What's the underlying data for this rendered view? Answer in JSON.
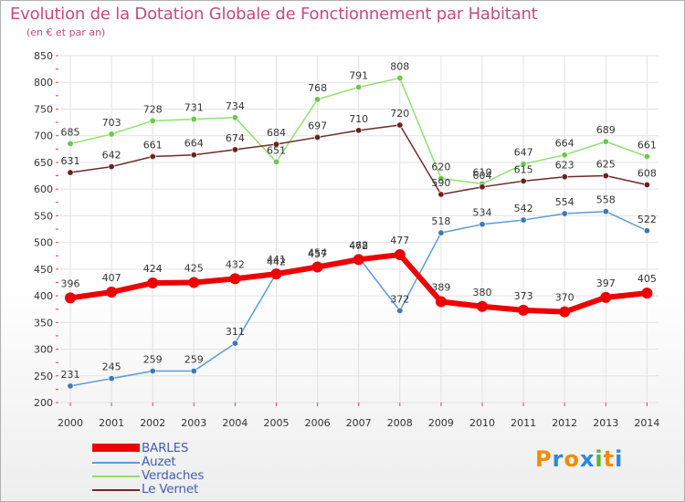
{
  "title": "Evolution de la Dotation Globale de Fonctionnement par Habitant",
  "subtitle": "(en € et par an)",
  "colors": {
    "title": "#c64a7a",
    "grid": "#e2e2e2",
    "axis_text": "#333333",
    "legend_text": "#3f5fb4"
  },
  "chart_data": {
    "type": "line",
    "title": "Evolution de la Dotation Globale de Fonctionnement par Habitant",
    "subtitle": "(en € et par an)",
    "xlabel": "",
    "ylabel": "",
    "ylim": [
      200,
      850
    ],
    "yticks": [
      200,
      250,
      300,
      350,
      400,
      450,
      500,
      550,
      600,
      650,
      700,
      750,
      800,
      850
    ],
    "grid": true,
    "legend_position": "bottom-left",
    "x": [
      "2000",
      "2001",
      "2002",
      "2003",
      "2004",
      "2005",
      "2006",
      "2007",
      "2008",
      "2009",
      "2010",
      "2011",
      "2012",
      "2013",
      "2014"
    ],
    "series": [
      {
        "name": "Auzet",
        "color": "#5b9bd5",
        "marker": "#3a7ab8",
        "width": 1.5,
        "values": [
          231,
          245,
          259,
          259,
          311,
          442,
          457,
          472,
          372,
          518,
          534,
          542,
          554,
          558,
          522
        ]
      },
      {
        "name": "Verdaches",
        "color": "#90e070",
        "marker": "#6cc84c",
        "width": 1.5,
        "values": [
          685,
          703,
          728,
          731,
          734,
          651,
          768,
          791,
          808,
          620,
          610,
          647,
          664,
          689,
          661
        ]
      },
      {
        "name": "Le Vernet",
        "color": "#6e2a2a",
        "marker": "#6e2020",
        "width": 1.5,
        "values": [
          631,
          642,
          661,
          664,
          674,
          684,
          697,
          710,
          720,
          590,
          604,
          615,
          623,
          625,
          608
        ]
      },
      {
        "name": "BARLES",
        "color": "#ee0000",
        "marker": "#ee0000",
        "width": 6,
        "values": [
          396,
          407,
          424,
          425,
          432,
          441,
          454,
          468,
          477,
          389,
          380,
          373,
          370,
          397,
          405
        ]
      }
    ],
    "legend_order": [
      "BARLES",
      "Auzet",
      "Verdaches",
      "Le Vernet"
    ]
  },
  "logo": {
    "letters": [
      "P",
      "r",
      "o",
      "x",
      "i",
      "t",
      "i"
    ],
    "colors": [
      "#f08c00",
      "#2a8ad8",
      "#f08c00",
      "#2a8ad8",
      "#58b830",
      "#f08c00",
      "#2a8ad8"
    ]
  }
}
